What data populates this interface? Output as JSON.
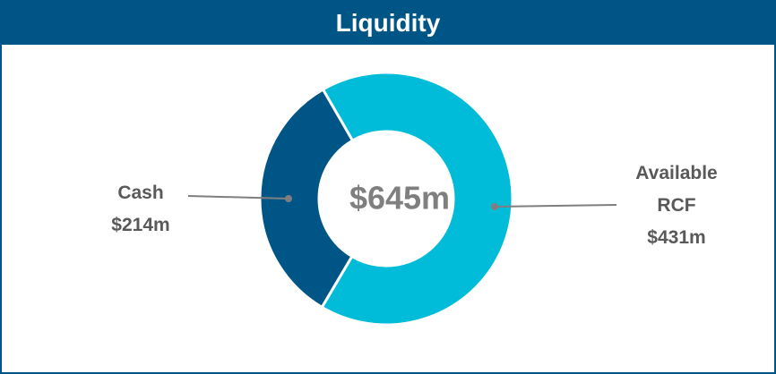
{
  "chart_data": {
    "type": "donut",
    "title": "Liquidity",
    "categories": [
      "Cash",
      "Available RCF"
    ],
    "values": [
      214,
      431
    ],
    "value_labels": [
      "$214m",
      "$431m"
    ],
    "colors": [
      "#005587",
      "#00bcd8"
    ],
    "center_label": "$645m"
  }
}
